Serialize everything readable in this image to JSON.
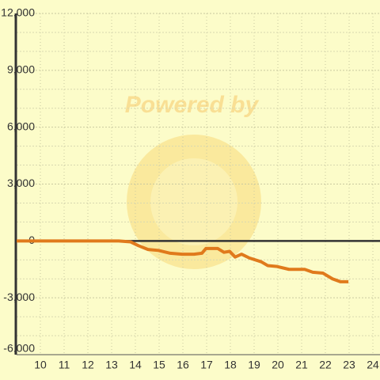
{
  "chart_data": {
    "type": "line",
    "watermark": "Powered by",
    "x": [
      9,
      13.3,
      13.8,
      14.13,
      14.53,
      14.97,
      15.47,
      15.97,
      16.47,
      16.8,
      16.97,
      17.47,
      17.73,
      17.97,
      18.2,
      18.47,
      18.8,
      19.3,
      19.57,
      19.97,
      20.47,
      21.13,
      21.47,
      21.9,
      22.3,
      22.63,
      22.97
    ],
    "series": [
      {
        "color": "#e07a1c",
        "values": [
          0,
          0,
          -50,
          -250,
          -450,
          -500,
          -650,
          -700,
          -700,
          -650,
          -400,
          -400,
          -600,
          -550,
          -850,
          -700,
          -900,
          -1100,
          -1300,
          -1350,
          -1500,
          -1500,
          -1650,
          -1700,
          -2000,
          -2150,
          -2150
        ]
      }
    ],
    "xlim": [
      9,
      24.3
    ],
    "xticks": [
      10,
      11,
      12,
      13,
      14,
      15,
      16,
      17,
      18,
      19,
      20,
      21,
      22,
      23,
      24
    ],
    "ylim": [
      -6000,
      12000
    ],
    "yticks": [
      {
        "value": -6000,
        "label": "-6,000"
      },
      {
        "value": -3000,
        "label": "-3,000"
      },
      0,
      {
        "value": 3000,
        "label": "3,000"
      },
      {
        "value": 6000,
        "label": "6,000"
      },
      {
        "value": 9000,
        "label": "9,000"
      },
      {
        "value": 12000,
        "label": "12,000"
      }
    ],
    "grid": true
  }
}
